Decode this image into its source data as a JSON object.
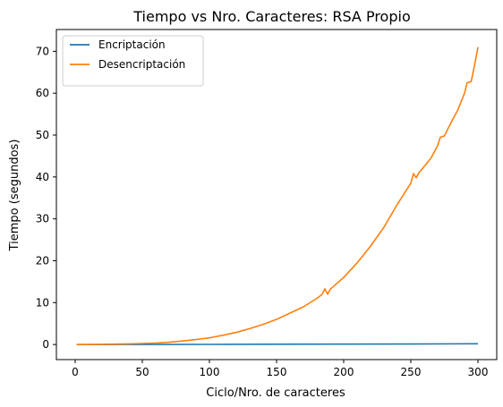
{
  "chart_data": {
    "type": "line",
    "title": "Tiempo vs Nro. Caracteres: RSA Propio",
    "xlabel": "Ciclo/Nro. de caracteres",
    "ylabel": "Tiempo (segundos)",
    "xlim": [
      -14,
      314
    ],
    "ylim": [
      -3.6,
      75.2
    ],
    "xticks": [
      0,
      50,
      100,
      150,
      200,
      250,
      300
    ],
    "yticks": [
      0,
      10,
      20,
      30,
      40,
      50,
      60,
      70
    ],
    "grid": false,
    "legend": {
      "position": "top-left"
    },
    "series": [
      {
        "name": "Encriptación",
        "color": "#1f77b4",
        "x": [
          1,
          50,
          100,
          150,
          200,
          250,
          300
        ],
        "y": [
          0.0,
          0.01,
          0.03,
          0.06,
          0.09,
          0.13,
          0.18
        ]
      },
      {
        "name": "Desencriptación",
        "color": "#ff7f0e",
        "x": [
          1,
          20,
          40,
          60,
          70,
          80,
          90,
          100,
          110,
          120,
          130,
          140,
          150,
          160,
          170,
          180,
          184,
          186,
          188,
          190,
          200,
          210,
          220,
          230,
          240,
          250,
          252,
          254,
          256,
          260,
          265,
          270,
          272,
          275,
          280,
          285,
          290,
          292,
          295,
          298,
          300
        ],
        "y": [
          0.0,
          0.05,
          0.15,
          0.35,
          0.55,
          0.85,
          1.2,
          1.6,
          2.2,
          2.9,
          3.8,
          4.8,
          6.0,
          7.5,
          9.0,
          11.0,
          12.0,
          13.3,
          12.0,
          13.2,
          16.0,
          19.5,
          23.5,
          28.0,
          33.5,
          38.5,
          40.8,
          39.8,
          41.0,
          42.5,
          44.5,
          47.5,
          49.5,
          49.8,
          53.0,
          56.0,
          60.0,
          62.5,
          62.8,
          67.5,
          71.0
        ]
      }
    ]
  }
}
